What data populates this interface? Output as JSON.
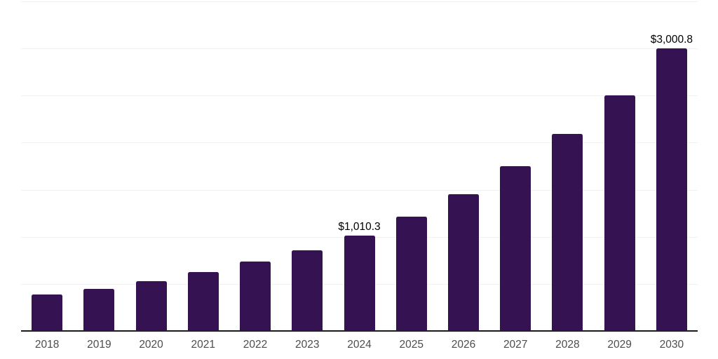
{
  "chart_data": {
    "type": "bar",
    "title": "",
    "xlabel": "",
    "ylabel": "",
    "categories": [
      "2018",
      "2019",
      "2020",
      "2021",
      "2022",
      "2023",
      "2024",
      "2025",
      "2026",
      "2027",
      "2028",
      "2029",
      "2030"
    ],
    "values": [
      385,
      450,
      530,
      625,
      740,
      855,
      1010.3,
      1212,
      1455,
      1748,
      2090,
      2505,
      3000.8
    ],
    "value_labels": [
      {
        "category": "2024",
        "text": "$1,010.3"
      },
      {
        "category": "2030",
        "text": "$3,000.8"
      }
    ],
    "ylim": [
      0,
      3500
    ],
    "gridline_interval": 500,
    "grid": true,
    "legend": false,
    "y_axis_tick_labels_visible": false,
    "colors": {
      "bar": "#351252",
      "gridline": "#f2f2f2",
      "axis": "#1a1a1a",
      "tick_label": "#4d4d4d",
      "value_label": "#000000",
      "background": "#ffffff"
    }
  }
}
